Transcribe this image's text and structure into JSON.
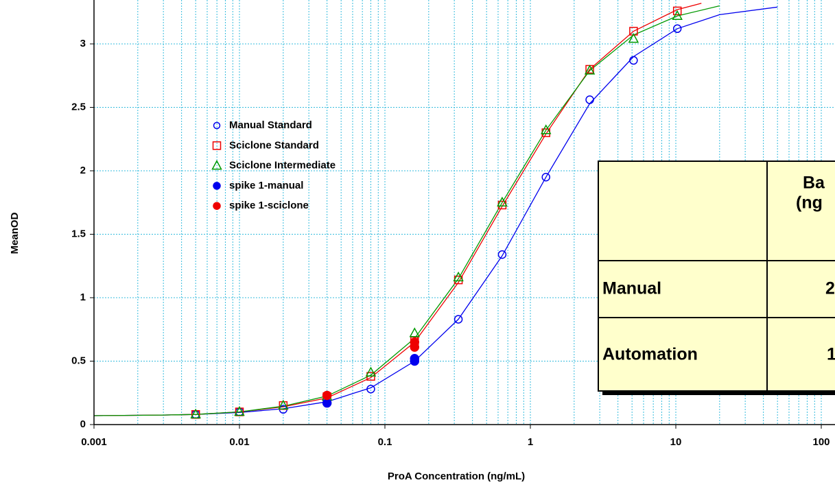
{
  "chart_data": {
    "type": "scatter",
    "x_label": "ProA Concentration (ng/mL)",
    "y_label": "MeanOD",
    "xscale": "log",
    "xlim": [
      0.001,
      100
    ],
    "ylim": [
      0,
      3.3
    ],
    "xticks": [
      0.001,
      0.01,
      0.1,
      1,
      10,
      100
    ],
    "xminorticks": [
      0.002,
      0.003,
      0.004,
      0.005,
      0.006,
      0.007,
      0.008,
      0.009,
      0.02,
      0.03,
      0.04,
      0.05,
      0.06,
      0.07,
      0.08,
      0.09,
      0.2,
      0.3,
      0.4,
      0.5,
      0.6,
      0.7,
      0.8,
      0.9,
      2,
      3,
      4,
      5,
      6,
      7,
      8,
      9,
      20,
      30,
      40,
      50,
      60,
      70,
      80,
      90
    ],
    "yticks": [
      0,
      0.5,
      1,
      1.5,
      2,
      2.5,
      3
    ],
    "grid": true,
    "grid_color": "#33bbdd",
    "series": [
      {
        "name": "Manual Standard",
        "color": "#0000ee",
        "marker": "circle",
        "filled": false,
        "x": [
          0.005,
          0.01,
          0.02,
          0.04,
          0.08,
          0.16,
          0.32,
          0.64,
          1.28,
          2.56,
          5.12,
          10.24
        ],
        "values": [
          0.08,
          0.1,
          0.12,
          0.17,
          0.28,
          0.5,
          0.83,
          1.34,
          1.95,
          2.56,
          2.87,
          3.12
        ]
      },
      {
        "name": "Sciclone Standard",
        "color": "#ee0000",
        "marker": "square",
        "filled": false,
        "x": [
          0.005,
          0.01,
          0.02,
          0.04,
          0.08,
          0.16,
          0.32,
          0.64,
          1.28,
          2.56,
          5.12,
          10.24
        ],
        "values": [
          0.08,
          0.1,
          0.15,
          0.22,
          0.38,
          0.66,
          1.14,
          1.73,
          2.3,
          2.8,
          3.1,
          3.26
        ]
      },
      {
        "name": "Sciclone Intermediate",
        "color": "#009900",
        "marker": "triangle",
        "filled": false,
        "x": [
          0.005,
          0.01,
          0.02,
          0.04,
          0.08,
          0.16,
          0.32,
          0.64,
          1.28,
          2.56,
          5.12,
          10.24
        ],
        "values": [
          0.08,
          0.1,
          0.15,
          0.22,
          0.41,
          0.72,
          1.16,
          1.75,
          2.32,
          2.79,
          3.04,
          3.22
        ]
      },
      {
        "name": "spike 1-manual",
        "color": "#0000ee",
        "marker": "circle",
        "filled": true,
        "x": [
          0.04,
          0.16,
          0.16
        ],
        "values": [
          0.17,
          0.5,
          0.52
        ]
      },
      {
        "name": "spike 1-sciclone",
        "color": "#ee0000",
        "marker": "circle",
        "filled": true,
        "x": [
          0.04,
          0.16,
          0.16
        ],
        "values": [
          0.23,
          0.61,
          0.65
        ]
      }
    ],
    "curves": [
      {
        "color": "#0000ee",
        "x": [
          0.001,
          0.003,
          0.005,
          0.01,
          0.02,
          0.04,
          0.08,
          0.16,
          0.32,
          0.64,
          1.28,
          2.56,
          5.12,
          10.24,
          20,
          50
        ],
        "values": [
          0.07,
          0.075,
          0.08,
          0.095,
          0.125,
          0.18,
          0.29,
          0.5,
          0.83,
          1.33,
          1.95,
          2.53,
          2.9,
          3.12,
          3.23,
          3.29
        ]
      },
      {
        "color": "#ee0000",
        "x": [
          0.001,
          0.003,
          0.005,
          0.01,
          0.02,
          0.04,
          0.08,
          0.16,
          0.32,
          0.64,
          1.28,
          2.56,
          5.12,
          10.24,
          15
        ],
        "values": [
          0.07,
          0.075,
          0.08,
          0.1,
          0.14,
          0.21,
          0.37,
          0.65,
          1.12,
          1.72,
          2.29,
          2.8,
          3.1,
          3.27,
          3.32
        ]
      },
      {
        "color": "#009900",
        "x": [
          0.001,
          0.003,
          0.005,
          0.01,
          0.02,
          0.04,
          0.08,
          0.16,
          0.32,
          0.64,
          1.28,
          2.56,
          5.12,
          10.24,
          20
        ],
        "values": [
          0.07,
          0.075,
          0.08,
          0.1,
          0.145,
          0.225,
          0.39,
          0.68,
          1.15,
          1.75,
          2.32,
          2.79,
          3.07,
          3.22,
          3.3
        ]
      }
    ]
  },
  "table": {
    "header": [
      "Ba",
      "(ng"
    ],
    "rows": [
      [
        "Manual",
        "2"
      ],
      [
        "Automation",
        "1"
      ]
    ]
  }
}
